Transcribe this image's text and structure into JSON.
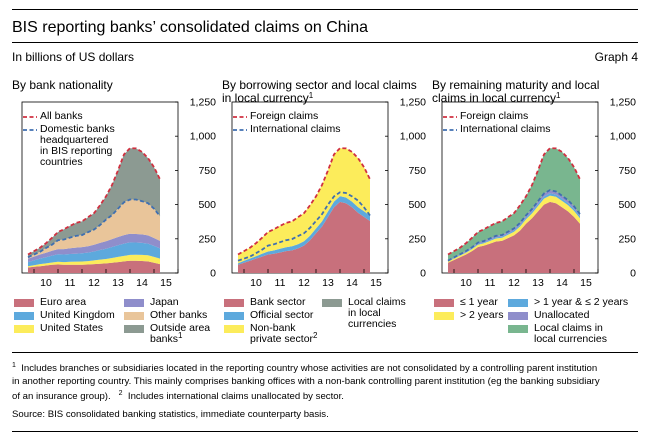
{
  "header": {
    "title": "BIS reporting banks’ consolidated claims on China",
    "subtitle": "In billions of US dollars",
    "graph_label": "Graph 4"
  },
  "panels": [
    {
      "title_lines": [
        "By bank nationality"
      ],
      "title_sup": ""
    },
    {
      "title_lines": [
        "By borrowing sector and local claims",
        "in local currency"
      ],
      "title_sup": "1"
    },
    {
      "title_lines": [
        "By remaining maturity and local",
        "claims in local currency"
      ],
      "title_sup": "1"
    }
  ],
  "colors": {
    "pink": "#c8707c",
    "blue": "#5da9dd",
    "yellow": "#fcec5b",
    "lavender": "#8f8ecb",
    "tan": "#e9c59a",
    "gray": "#8c9a92",
    "green": "#79b68f",
    "red": "#d03040",
    "dblue": "#3f6fb0"
  },
  "footnotes": {
    "note1_marker": "1",
    "note1_line1": "Includes branches or subsidiaries located in the reporting country whose activities are not consolidated by a controlling parent institution",
    "note1_line2": "in another reporting country. This mainly comprises banking offices with a non-bank controlling parent institution (eg the banking subsidiary",
    "note1_line3": "of an insurance group).",
    "note2_marker": "2",
    "note2_text": "Includes international claims unallocated by sector.",
    "source": "Source: BIS consolidated banking statistics, immediate counterparty basis."
  },
  "chart_data": [
    {
      "type": "area",
      "stacked": true,
      "title": "By bank nationality",
      "x_start": 2009.75,
      "x_step": 0.25,
      "x_ticks": [
        "10",
        "11",
        "12",
        "13",
        "14",
        "15"
      ],
      "ylim": [
        0,
        1250
      ],
      "y_ticks": [
        "0",
        "250",
        "500",
        "750",
        "1,000",
        "1,250"
      ],
      "series": [
        {
          "name": "Euro area",
          "color": "#c8707c",
          "values": [
            40,
            45,
            50,
            55,
            60,
            62,
            60,
            60,
            60,
            60,
            62,
            65,
            68,
            70,
            75,
            80,
            85,
            90,
            90,
            88,
            85,
            75,
            65
          ]
        },
        {
          "name": "United States",
          "color": "#fcec5b",
          "values": [
            10,
            12,
            15,
            15,
            17,
            20,
            20,
            22,
            23,
            24,
            25,
            27,
            30,
            32,
            35,
            38,
            40,
            42,
            43,
            44,
            45,
            43,
            40
          ]
        },
        {
          "name": "United Kingdom",
          "color": "#5da9dd",
          "values": [
            30,
            35,
            40,
            45,
            50,
            55,
            55,
            57,
            58,
            60,
            62,
            65,
            70,
            75,
            80,
            85,
            90,
            92,
            90,
            88,
            85,
            80,
            75
          ]
        },
        {
          "name": "Japan",
          "color": "#8f8ecb",
          "values": [
            25,
            28,
            30,
            33,
            35,
            38,
            40,
            42,
            45,
            45,
            47,
            50,
            52,
            55,
            58,
            60,
            62,
            63,
            62,
            62,
            60,
            58,
            55
          ]
        },
        {
          "name": "Other banks",
          "color": "#e9c59a",
          "values": [
            10,
            15,
            20,
            35,
            45,
            65,
            70,
            78,
            85,
            88,
            102,
            110,
            130,
            158,
            175,
            207,
            240,
            250,
            252,
            243,
            235,
            214,
            180
          ]
        },
        {
          "name": "Outside area banks",
          "sup": "1",
          "color": "#8c9a92",
          "values": [
            20,
            25,
            30,
            35,
            50,
            60,
            75,
            85,
            95,
            100,
            110,
            120,
            145,
            170,
            220,
            280,
            350,
            375,
            374,
            360,
            330,
            304,
            270
          ]
        }
      ],
      "lines": [
        {
          "name": "All banks",
          "color": "#d03040",
          "values": [
            135,
            160,
            185,
            218,
            257,
            300,
            320,
            344,
            366,
            377,
            408,
            437,
            495,
            560,
            643,
            750,
            867,
            912,
            911,
            885,
            840,
            774,
            685
          ]
        },
        {
          "name": "Domestic banks headquartered in BIS reporting countries",
          "color": "#3f6fb0",
          "values": [
            115,
            135,
            155,
            183,
            207,
            240,
            245,
            259,
            271,
            277,
            298,
            317,
            350,
            390,
            423,
            470,
            517,
            537,
            537,
            525,
            510,
            470,
            415
          ]
        }
      ],
      "legend_lines": {
        "all_banks": "All banks",
        "domestic_1": "Domestic banks",
        "domestic_2": "headquartered",
        "domestic_3": "in BIS reporting",
        "domestic_4": "countries"
      }
    },
    {
      "type": "area",
      "stacked": true,
      "title": "By borrowing sector and local claims in local currency",
      "x_start": 2009.75,
      "x_step": 0.25,
      "x_ticks": [
        "10",
        "11",
        "12",
        "13",
        "14",
        "15"
      ],
      "ylim": [
        0,
        1250
      ],
      "y_ticks": [
        "0",
        "250",
        "500",
        "750",
        "1,000",
        "1,250"
      ],
      "series": [
        {
          "name": "Bank sector",
          "color": "#c8707c",
          "values": [
            60,
            75,
            90,
            105,
            120,
            135,
            140,
            150,
            160,
            165,
            180,
            200,
            240,
            290,
            340,
            410,
            480,
            520,
            510,
            480,
            440,
            410,
            380
          ]
        },
        {
          "name": "Official sector",
          "color": "#5da9dd",
          "values": [
            12,
            14,
            16,
            18,
            20,
            22,
            25,
            27,
            28,
            30,
            30,
            32,
            33,
            35,
            37,
            40,
            42,
            42,
            42,
            42,
            42,
            41,
            40
          ]
        },
        {
          "name": "Non-bank private sector",
          "sup": "2",
          "color": "#fcec5b",
          "values": [
            63,
            71,
            79,
            95,
            117,
            143,
            155,
            167,
            178,
            182,
            198,
            205,
            222,
            235,
            266,
            300,
            345,
            350,
            359,
            363,
            358,
            323,
            265
          ]
        },
        {
          "name": "Local claims in local currencies",
          "color": "#8c9a92",
          "values": [
            0,
            0,
            0,
            0,
            0,
            0,
            0,
            0,
            0,
            0,
            0,
            0,
            0,
            0,
            0,
            0,
            0,
            0,
            0,
            0,
            0,
            0,
            0
          ]
        }
      ],
      "lines": [
        {
          "name": "Foreign claims",
          "color": "#d03040",
          "values": [
            135,
            160,
            185,
            218,
            257,
            300,
            320,
            344,
            366,
            377,
            408,
            437,
            495,
            560,
            643,
            750,
            867,
            912,
            911,
            885,
            840,
            774,
            685
          ]
        },
        {
          "name": "International claims",
          "color": "#3f6fb0",
          "values": [
            90,
            105,
            120,
            145,
            170,
            200,
            210,
            225,
            240,
            248,
            270,
            290,
            330,
            380,
            430,
            500,
            560,
            590,
            585,
            560,
            530,
            480,
            420
          ]
        }
      ]
    },
    {
      "type": "area",
      "stacked": true,
      "title": "By remaining maturity and local claims in local currency",
      "x_start": 2009.75,
      "x_step": 0.25,
      "x_ticks": [
        "10",
        "11",
        "12",
        "13",
        "14",
        "15"
      ],
      "ylim": [
        0,
        1250
      ],
      "y_ticks": [
        "0",
        "250",
        "500",
        "750",
        "1,000",
        "1,250"
      ],
      "series": [
        {
          "name": "≤ 1 year",
          "color": "#c8707c",
          "values": [
            75,
            95,
            115,
            135,
            160,
            190,
            200,
            215,
            230,
            235,
            255,
            275,
            310,
            360,
            400,
            450,
            500,
            520,
            510,
            480,
            450,
            410,
            360
          ]
        },
        {
          "name": "> 2 years",
          "color": "#fcec5b",
          "values": [
            8,
            10,
            12,
            13,
            15,
            17,
            18,
            20,
            22,
            23,
            25,
            27,
            30,
            33,
            36,
            40,
            44,
            46,
            47,
            47,
            46,
            44,
            40
          ]
        },
        {
          "name": "> 1 year & ≤ 2 years",
          "color": "#5da9dd",
          "values": [
            2,
            3,
            3,
            4,
            5,
            6,
            6,
            7,
            8,
            8,
            9,
            10,
            11,
            12,
            14,
            15,
            16,
            17,
            17,
            17,
            16,
            16,
            15
          ]
        },
        {
          "name": "Unallocated",
          "color": "#8f8ecb",
          "values": [
            5,
            6,
            7,
            8,
            8,
            9,
            10,
            11,
            12,
            12,
            13,
            14,
            15,
            16,
            18,
            20,
            22,
            23,
            22,
            21,
            20,
            18,
            15
          ]
        },
        {
          "name": "Local claims in local currencies",
          "color": "#79b68f",
          "values": [
            45,
            46,
            48,
            58,
            69,
            78,
            86,
            91,
            94,
            99,
            106,
            111,
            129,
            139,
            175,
            225,
            285,
            306,
            315,
            320,
            308,
            286,
            255
          ]
        }
      ],
      "lines": [
        {
          "name": "Foreign claims",
          "color": "#d03040",
          "values": [
            135,
            160,
            185,
            218,
            257,
            300,
            320,
            344,
            366,
            377,
            408,
            437,
            495,
            560,
            643,
            750,
            867,
            912,
            911,
            885,
            840,
            774,
            685
          ]
        },
        {
          "name": "International claims",
          "color": "#3f6fb0",
          "values": [
            90,
            114,
            137,
            160,
            188,
            222,
            234,
            253,
            272,
            278,
            302,
            326,
            366,
            421,
            468,
            525,
            582,
            606,
            596,
            565,
            532,
            488,
            430
          ]
        }
      ]
    }
  ]
}
